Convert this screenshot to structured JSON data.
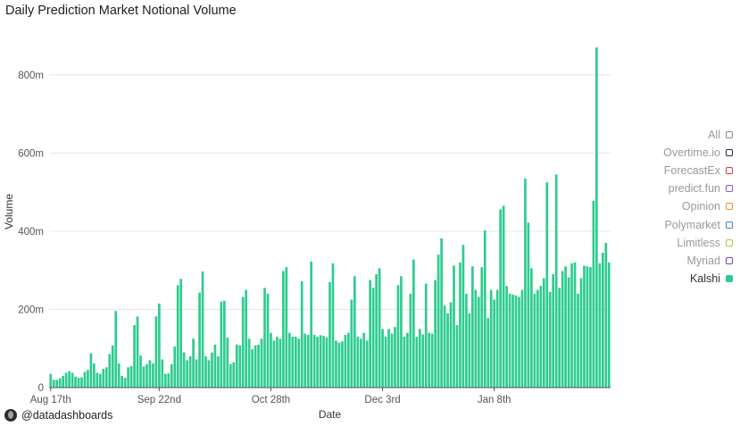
{
  "header": {
    "title": "Daily Prediction Market Notional Volume"
  },
  "legend": [
    {
      "label": "All",
      "color": "#8a8a8a",
      "active": false
    },
    {
      "label": "Overtime.io",
      "color": "#1e2a4a",
      "active": false
    },
    {
      "label": "ForecastEx",
      "color": "#e03b3b",
      "active": false
    },
    {
      "label": "predict.fun",
      "color": "#8b5cc4",
      "active": false
    },
    {
      "label": "Opinion",
      "color": "#f08a3c",
      "active": false
    },
    {
      "label": "Polymarket",
      "color": "#3b82d6",
      "active": false
    },
    {
      "label": "Limitless",
      "color": "#b7c43a",
      "active": false
    },
    {
      "label": "Myriad",
      "color": "#7b3fb5",
      "active": false
    },
    {
      "label": "Kalshi",
      "color": "#2ecc8f",
      "active": true
    }
  ],
  "footer": {
    "handle": "@datadashboards"
  },
  "chart_data": {
    "type": "bar",
    "xlabel": "Date",
    "ylabel": "Volume",
    "ylim": [
      0,
      900
    ],
    "yticks": [
      {
        "value": 0,
        "label": "0"
      },
      {
        "value": 200,
        "label": "200m"
      },
      {
        "value": 400,
        "label": "400m"
      },
      {
        "value": 600,
        "label": "600m"
      },
      {
        "value": 800,
        "label": "800m"
      }
    ],
    "xticks": [
      {
        "index": 0,
        "label": "Aug 17th"
      },
      {
        "index": 35,
        "label": "Sep 22nd"
      },
      {
        "index": 71,
        "label": "Oct 28th"
      },
      {
        "index": 107,
        "label": "Dec 3rd"
      },
      {
        "index": 143,
        "label": "Jan 8th"
      }
    ],
    "grid": true,
    "color": "#2ecc8f",
    "series": [
      {
        "name": "Kalshi",
        "values": [
          35,
          20,
          20,
          24,
          30,
          38,
          42,
          38,
          28,
          25,
          26,
          40,
          45,
          88,
          62,
          38,
          35,
          48,
          52,
          86,
          108,
          196,
          62,
          30,
          25,
          52,
          55,
          160,
          182,
          82,
          54,
          60,
          70,
          62,
          182,
          215,
          72,
          35,
          36,
          60,
          105,
          262,
          278,
          90,
          70,
          80,
          125,
          72,
          243,
          297,
          80,
          70,
          90,
          110,
          80,
          220,
          222,
          128,
          60,
          65,
          110,
          108,
          232,
          250,
          125,
          98,
          108,
          110,
          125,
          255,
          240,
          140,
          120,
          130,
          125,
          298,
          308,
          140,
          130,
          130,
          125,
          272,
          138,
          135,
          322,
          135,
          130,
          134,
          132,
          128,
          270,
          318,
          120,
          115,
          118,
          135,
          140,
          225,
          285,
          130,
          125,
          140,
          120,
          275,
          255,
          290,
          305,
          150,
          130,
          150,
          138,
          155,
          262,
          285,
          130,
          140,
          240,
          328,
          130,
          150,
          136,
          266,
          140,
          138,
          275,
          340,
          382,
          210,
          190,
          218,
          312,
          160,
          320,
          365,
          240,
          190,
          310,
          250,
          232,
          308,
          402,
          178,
          250,
          225,
          250,
          456,
          465,
          260,
          240,
          238,
          236,
          232,
          250,
          535,
          422,
          305,
          240,
          250,
          260,
          280,
          525,
          245,
          290,
          545,
          255,
          298,
          310,
          282,
          318,
          320,
          240,
          280,
          312,
          310,
          308,
          478,
          870,
          318,
          345,
          370,
          320
        ]
      }
    ]
  }
}
